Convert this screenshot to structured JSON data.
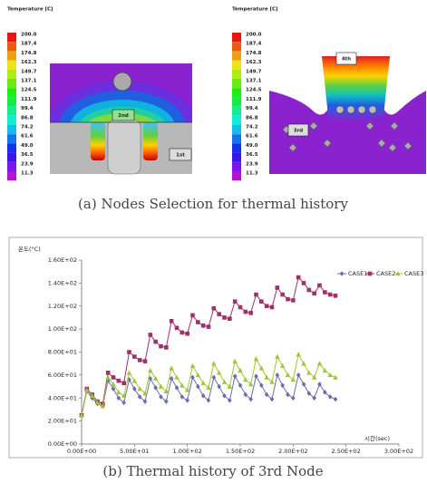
{
  "figure_a": {
    "left": {
      "scale_title": "Temperature [C]",
      "scale": [
        "200.0",
        "187.4",
        "174.8",
        "162.3",
        "149.7",
        "137.1",
        "124.5",
        "111.9",
        "99.4",
        "86.8",
        "74.2",
        "61.6",
        "49.0",
        "36.5",
        "23.9",
        "11.3"
      ],
      "nodes": [
        "2nd",
        "1st"
      ]
    },
    "right": {
      "scale_title": "Temperature [C]",
      "scale": [
        "200.0",
        "187.4",
        "174.8",
        "162.3",
        "149.7",
        "137.1",
        "124.5",
        "111.9",
        "99.4",
        "86.8",
        "74.2",
        "61.6",
        "49.0",
        "36.5",
        "23.9",
        "11.3"
      ],
      "nodes": [
        "4th",
        "3rd"
      ]
    },
    "caption": "(a) Nodes Selection for thermal history"
  },
  "chart_data": {
    "type": "line",
    "ylabel": "온도(°C)",
    "xlabel": "시간(sec)",
    "x": [
      0,
      5,
      10,
      15,
      20,
      25,
      30,
      35,
      40,
      45,
      50,
      55,
      60,
      65,
      70,
      75,
      80,
      85,
      90,
      95,
      100,
      105,
      110,
      115,
      120,
      125,
      130,
      135,
      140,
      145,
      150,
      155,
      160,
      165,
      170,
      175,
      180,
      185,
      190,
      195,
      200,
      205,
      210,
      215,
      220,
      225,
      230,
      235,
      240
    ],
    "series": [
      {
        "name": "CASE1",
        "color": "#6b6bb0",
        "marker": "diamond",
        "values": [
          25,
          46,
          40,
          35,
          33,
          55,
          48,
          40,
          36,
          56,
          48,
          41,
          37,
          57,
          49,
          41,
          37,
          57,
          49,
          41,
          38,
          58,
          50,
          42,
          38,
          58,
          50,
          42,
          38,
          59,
          51,
          43,
          39,
          59,
          51,
          43,
          39,
          60,
          51,
          43,
          40,
          60,
          52,
          44,
          40,
          52,
          45,
          41,
          39
        ]
      },
      {
        "name": "CASE2",
        "color": "#a0306a",
        "marker": "square",
        "values": [
          25,
          48,
          43,
          37,
          35,
          62,
          58,
          55,
          53,
          80,
          76,
          73,
          72,
          95,
          89,
          85,
          84,
          107,
          101,
          97,
          96,
          112,
          106,
          103,
          102,
          118,
          113,
          110,
          109,
          124,
          119,
          115,
          114,
          130,
          124,
          120,
          119,
          136,
          130,
          126,
          125,
          145,
          140,
          134,
          131,
          138,
          132,
          130,
          129
        ]
      },
      {
        "name": "CASE3",
        "color": "#9fc536",
        "marker": "triangle",
        "values": [
          25,
          47,
          42,
          36,
          33,
          58,
          52,
          45,
          42,
          62,
          55,
          48,
          44,
          64,
          57,
          50,
          46,
          66,
          58,
          51,
          47,
          68,
          60,
          53,
          49,
          70,
          62,
          54,
          50,
          72,
          64,
          56,
          52,
          74,
          66,
          58,
          54,
          76,
          68,
          60,
          56,
          78,
          70,
          62,
          58,
          70,
          64,
          60,
          58
        ]
      }
    ],
    "xlim": [
      0,
      300
    ],
    "ylim": [
      0,
      160
    ],
    "xticks": [
      {
        "value": 0,
        "label": "0.00E+00"
      },
      {
        "value": 50,
        "label": "5.00E+01"
      },
      {
        "value": 100,
        "label": "1.00E+02"
      },
      {
        "value": 150,
        "label": "1.50E+02"
      },
      {
        "value": 200,
        "label": "2.00E+02"
      },
      {
        "value": 250,
        "label": "2.50E+02"
      },
      {
        "value": 300,
        "label": "3.00E+02"
      }
    ],
    "yticks": [
      {
        "value": 0,
        "label": "0.00E+00"
      },
      {
        "value": 20,
        "label": "2.00E+01"
      },
      {
        "value": 40,
        "label": "4.00E+01"
      },
      {
        "value": 60,
        "label": "6.00E+01"
      },
      {
        "value": 80,
        "label": "8.00E+01"
      },
      {
        "value": 100,
        "label": "1.00E+02"
      },
      {
        "value": 120,
        "label": "1.20E+02"
      },
      {
        "value": 140,
        "label": "1.40E+02"
      },
      {
        "value": 160,
        "label": "1.60E+02"
      }
    ],
    "grid": false,
    "legend": "upper right"
  },
  "caption_b": "(b) Thermal history of 3rd Node"
}
